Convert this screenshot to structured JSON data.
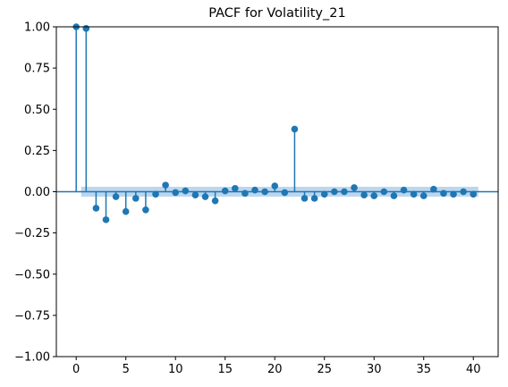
{
  "chart_data": {
    "type": "scatter",
    "subtype": "pacf-stem",
    "title": "PACF for Volatility_21",
    "xlabel": "",
    "ylabel": "",
    "xlim": [
      -2,
      42.5
    ],
    "ylim": [
      -1.0,
      1.0
    ],
    "x_ticks": [
      0,
      5,
      10,
      15,
      20,
      25,
      30,
      35,
      40
    ],
    "y_ticks": [
      -1.0,
      -0.75,
      -0.5,
      -0.25,
      0.0,
      0.25,
      0.5,
      0.75,
      1.0
    ],
    "x_tick_labels": [
      "0",
      "5",
      "10",
      "15",
      "20",
      "25",
      "30",
      "35",
      "40"
    ],
    "y_tick_labels": [
      "−1.00",
      "−0.75",
      "−0.50",
      "−0.25",
      "0.00",
      "0.25",
      "0.50",
      "0.75",
      "1.00"
    ],
    "grid": false,
    "legend": "none",
    "marker_color": "#1f77b4",
    "band_color": "#a6c8e8",
    "confidence_band": {
      "x_start": 0.5,
      "x_end": 40.5,
      "lower": -0.03,
      "upper": 0.03
    },
    "lags": [
      0,
      1,
      2,
      3,
      4,
      5,
      6,
      7,
      8,
      9,
      10,
      11,
      12,
      13,
      14,
      15,
      16,
      17,
      18,
      19,
      20,
      21,
      22,
      23,
      24,
      25,
      26,
      27,
      28,
      29,
      30,
      31,
      32,
      33,
      34,
      35,
      36,
      37,
      38,
      39,
      40
    ],
    "values": [
      1.0,
      0.99,
      -0.1,
      -0.17,
      -0.03,
      -0.12,
      -0.04,
      -0.11,
      -0.015,
      0.04,
      -0.005,
      0.005,
      -0.02,
      -0.03,
      -0.055,
      0.005,
      0.02,
      -0.01,
      0.01,
      0.0,
      0.035,
      -0.005,
      0.38,
      -0.04,
      -0.04,
      -0.015,
      0.0,
      0.0,
      0.025,
      -0.02,
      -0.025,
      0.0,
      -0.025,
      0.01,
      -0.015,
      -0.025,
      0.015,
      -0.01,
      -0.015,
      0.0,
      -0.015
    ]
  }
}
